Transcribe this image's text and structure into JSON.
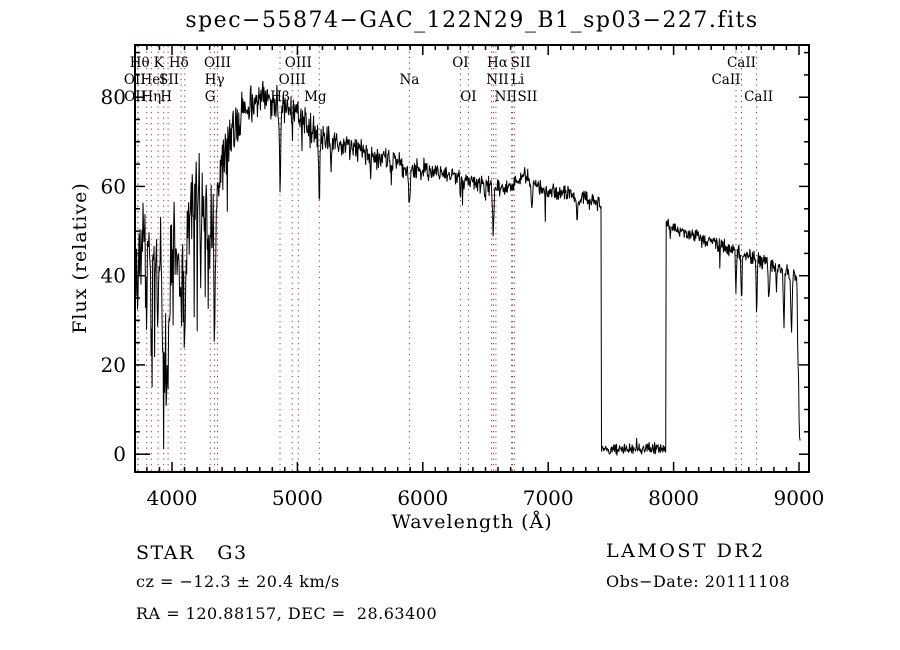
{
  "annotations": {
    "object_class": "STAR   G3",
    "survey": "LAMOST DR2",
    "cz": "cz = −12.3 ± 20.4 km/s",
    "obs_date": "Obs−Date: 20111108",
    "ra_dec": "RA = 120.88157, DEC =  28.63400"
  },
  "chart_data": {
    "type": "line",
    "title": "spec−55874−GAC_122N29_B1_sp03−227.fits",
    "xlabel": "Wavelength (Å)",
    "ylabel": "Flux (relative)",
    "xlim": [
      3705,
      9080
    ],
    "ylim": [
      -4.0,
      91.7
    ],
    "x_major_ticks": [
      4000,
      5000,
      6000,
      7000,
      8000,
      9000
    ],
    "x_minor_step": 100,
    "y_major_ticks": [
      0,
      20,
      40,
      60,
      80
    ],
    "y_minor_step": 5,
    "grid": false,
    "legend": "none",
    "line_color": "#000000",
    "marker_color": "#a43535",
    "spectrum": {
      "wl_start": 3705,
      "wl_end": 9012,
      "wl_step": 4,
      "seed": 20111108,
      "continuum": [
        [
          3705,
          34
        ],
        [
          3720,
          42
        ],
        [
          3740,
          48
        ],
        [
          3760,
          50
        ],
        [
          3780,
          46
        ],
        [
          3800,
          44
        ],
        [
          3820,
          46
        ],
        [
          3840,
          46
        ],
        [
          3860,
          48
        ],
        [
          3880,
          46
        ],
        [
          3900,
          44
        ],
        [
          3920,
          40
        ],
        [
          3940,
          38
        ],
        [
          3960,
          38
        ],
        [
          3980,
          42
        ],
        [
          4000,
          46
        ],
        [
          4020,
          46
        ],
        [
          4040,
          44
        ],
        [
          4060,
          44
        ],
        [
          4080,
          42
        ],
        [
          4100,
          42
        ],
        [
          4130,
          50
        ],
        [
          4160,
          54
        ],
        [
          4200,
          56
        ],
        [
          4250,
          54
        ],
        [
          4300,
          52
        ],
        [
          4330,
          56
        ],
        [
          4360,
          60
        ],
        [
          4400,
          66
        ],
        [
          4450,
          71
        ],
        [
          4500,
          74
        ],
        [
          4550,
          76
        ],
        [
          4600,
          78
        ],
        [
          4650,
          79
        ],
        [
          4700,
          80
        ],
        [
          4760,
          80
        ],
        [
          4820,
          79
        ],
        [
          4880,
          78
        ],
        [
          4940,
          77
        ],
        [
          5000,
          76
        ],
        [
          5060,
          74
        ],
        [
          5120,
          72.5
        ],
        [
          5180,
          71
        ],
        [
          5250,
          70
        ],
        [
          5350,
          69
        ],
        [
          5450,
          68.5
        ],
        [
          5550,
          67.5
        ],
        [
          5650,
          66.5
        ],
        [
          5750,
          65.5
        ],
        [
          5850,
          64.5
        ],
        [
          5950,
          64
        ],
        [
          6050,
          63.5
        ],
        [
          6150,
          63
        ],
        [
          6250,
          62
        ],
        [
          6350,
          61.5
        ],
        [
          6450,
          60.5
        ],
        [
          6550,
          60
        ],
        [
          6650,
          59.5
        ],
        [
          6750,
          61
        ],
        [
          6820,
          62.5
        ],
        [
          6900,
          60.5
        ],
        [
          7000,
          59
        ],
        [
          7100,
          58.5
        ],
        [
          7200,
          57.5
        ],
        [
          7300,
          57
        ],
        [
          7421,
          56
        ],
        [
          7940,
          51.5
        ],
        [
          8000,
          50.5
        ],
        [
          8100,
          49.5
        ],
        [
          8200,
          48.5
        ],
        [
          8300,
          47.5
        ],
        [
          8400,
          46.5
        ],
        [
          8500,
          45.5
        ],
        [
          8560,
          44.8
        ],
        [
          8620,
          44.2
        ],
        [
          8700,
          43.5
        ],
        [
          8780,
          42.5
        ],
        [
          8860,
          41.5
        ],
        [
          8930,
          40.5
        ],
        [
          8980,
          39.5
        ],
        [
          8986,
          36
        ],
        [
          8990,
          21
        ],
        [
          8996,
          19
        ],
        [
          9002,
          6
        ],
        [
          9008,
          3
        ],
        [
          9012,
          2
        ]
      ],
      "noise_regions": [
        {
          "from": 3705,
          "to": 4360,
          "amp": 13,
          "spike_prob": 0.1,
          "spike_max": 26
        },
        {
          "from": 4360,
          "to": 4560,
          "amp": 8.5,
          "spike_prob": 0.05,
          "spike_max": 14
        },
        {
          "from": 4560,
          "to": 5250,
          "amp": 5.2,
          "spike_prob": 0.04,
          "spike_max": 12
        },
        {
          "from": 5250,
          "to": 6050,
          "amp": 3.2,
          "spike_prob": 0.02,
          "spike_max": 7
        },
        {
          "from": 6050,
          "to": 7421,
          "amp": 2.4,
          "spike_prob": 0.015,
          "spike_max": 6
        },
        {
          "from": 7940,
          "to": 8980,
          "amp": 2.1,
          "spike_prob": 0.02,
          "spike_max": 6
        },
        {
          "from": 8980,
          "to": 9012,
          "amp": 1.2,
          "spike_prob": 0,
          "spike_max": 0
        }
      ],
      "absorption_lines": [
        {
          "wl": 3727,
          "depth": 10,
          "sigma": 4
        },
        {
          "wl": 3798,
          "depth": 15,
          "sigma": 5
        },
        {
          "wl": 3835,
          "depth": 17,
          "sigma": 5
        },
        {
          "wl": 3889,
          "depth": 19,
          "sigma": 5
        },
        {
          "wl": 3934,
          "depth": 28,
          "sigma": 6
        },
        {
          "wl": 3969,
          "depth": 25,
          "sigma": 6
        },
        {
          "wl": 4072,
          "depth": 10,
          "sigma": 5
        },
        {
          "wl": 4102,
          "depth": 22,
          "sigma": 6
        },
        {
          "wl": 4227,
          "depth": 7,
          "sigma": 4
        },
        {
          "wl": 4305,
          "depth": 11,
          "sigma": 7
        },
        {
          "wl": 4340,
          "depth": 30,
          "sigma": 6
        },
        {
          "wl": 4861,
          "depth": 18,
          "sigma": 5
        },
        {
          "wl": 4959,
          "depth": 4,
          "sigma": 4
        },
        {
          "wl": 5175,
          "depth": 12,
          "sigma": 6
        },
        {
          "wl": 5270,
          "depth": 5,
          "sigma": 5
        },
        {
          "wl": 5893,
          "depth": 8,
          "sigma": 6
        },
        {
          "wl": 6300,
          "depth": 4,
          "sigma": 4
        },
        {
          "wl": 6495,
          "depth": 3,
          "sigma": 5
        },
        {
          "wl": 6563,
          "depth": 11,
          "sigma": 5
        },
        {
          "wl": 6870,
          "depth": 5,
          "sigma": 6
        },
        {
          "wl": 7230,
          "depth": 3.5,
          "sigma": 6
        },
        {
          "wl": 8498,
          "depth": 9,
          "sigma": 4
        },
        {
          "wl": 8542,
          "depth": 11,
          "sigma": 4
        },
        {
          "wl": 8662,
          "depth": 13,
          "sigma": 4
        },
        {
          "wl": 8760,
          "depth": 9,
          "sigma": 5
        },
        {
          "wl": 8820,
          "depth": 6,
          "sigma": 4
        },
        {
          "wl": 8880,
          "depth": 12,
          "sigma": 5
        },
        {
          "wl": 8940,
          "depth": 13,
          "sigma": 5
        }
      ],
      "gap": {
        "from": 7421,
        "to": 7940,
        "level": 1.2,
        "amp": 1.6
      }
    },
    "spectral_markers": [
      {
        "label": "Hθ",
        "wl": 3798,
        "row": 1,
        "dx": -7
      },
      {
        "label": "K",
        "wl": 3934,
        "row": 1,
        "dx": -5
      },
      {
        "label": "Hδ",
        "wl": 4102,
        "row": 1,
        "dx": -6
      },
      {
        "label": "OIII",
        "wl": 4363,
        "row": 1,
        "dx": 0
      },
      {
        "label": "OIII",
        "wl": 5007,
        "row": 1,
        "dx": 0
      },
      {
        "label": "OI",
        "wl": 6300,
        "row": 1,
        "dx": 0
      },
      {
        "label": "Hα",
        "wl": 6563,
        "row": 1,
        "dx": 4
      },
      {
        "label": "SII",
        "wl": 6716,
        "row": 1,
        "dx": 8
      },
      {
        "label": "CaII",
        "wl": 8542,
        "row": 1,
        "dx": 0
      },
      {
        "label": "OII",
        "wl": 3727,
        "row": 2,
        "dx": -3
      },
      {
        "label": "HeI",
        "wl": 3889,
        "row": 2,
        "dx": -5
      },
      {
        "label": "SII",
        "wl": 4072,
        "row": 2,
        "dx": -12
      },
      {
        "label": "Hγ",
        "wl": 4340,
        "row": 2,
        "dx": 0
      },
      {
        "label": "OIII",
        "wl": 4959,
        "row": 2,
        "dx": 0
      },
      {
        "label": "Na",
        "wl": 5893,
        "row": 2,
        "dx": 0
      },
      {
        "label": "NII",
        "wl": 6548,
        "row": 2,
        "dx": 6
      },
      {
        "label": "Li",
        "wl": 6708,
        "row": 2,
        "dx": 6
      },
      {
        "label": "CaII",
        "wl": 8498,
        "row": 2,
        "dx": -10
      },
      {
        "label": "OII",
        "wl": 3730,
        "row": 3,
        "dx": -3
      },
      {
        "label": "Hη",
        "wl": 3835,
        "row": 3,
        "dx": 0
      },
      {
        "label": "H",
        "wl": 3969,
        "row": 3,
        "dx": -2
      },
      {
        "label": "G",
        "wl": 4305,
        "row": 3,
        "dx": 0
      },
      {
        "label": "Hβ",
        "wl": 4861,
        "row": 3,
        "dx": 0
      },
      {
        "label": "Mg",
        "wl": 5175,
        "row": 3,
        "dx": -4
      },
      {
        "label": "OI",
        "wl": 6364,
        "row": 3,
        "dx": 0
      },
      {
        "label": "NII",
        "wl": 6583,
        "row": 3,
        "dx": 10
      },
      {
        "label": "SII",
        "wl": 6731,
        "row": 3,
        "dx": 13
      },
      {
        "label": "CaII",
        "wl": 8662,
        "row": 3,
        "dx": 2
      }
    ]
  }
}
